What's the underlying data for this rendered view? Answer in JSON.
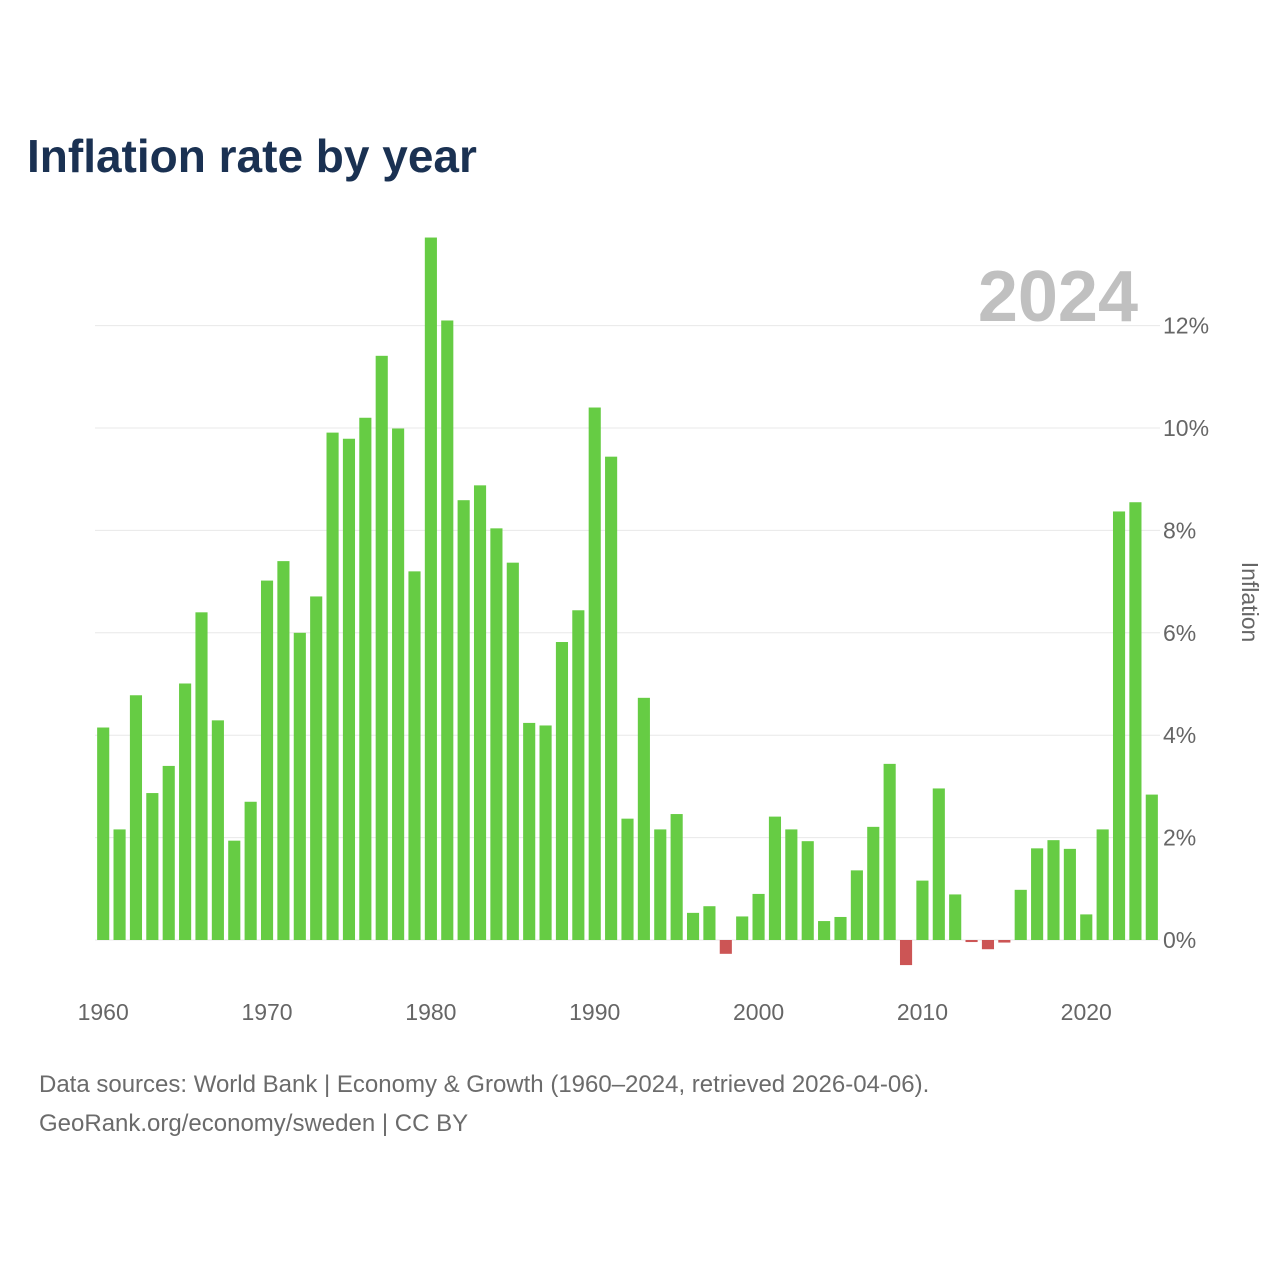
{
  "chart_data": {
    "type": "bar",
    "title": "Inflation rate by year",
    "current_year_label": "2024",
    "ylabel": "Inflation",
    "xlabel": "",
    "ylim": [
      -0.8,
      13.0
    ],
    "y_ticks": [
      {
        "value": 0,
        "label": "0%"
      },
      {
        "value": 2,
        "label": "2%"
      },
      {
        "value": 4,
        "label": "4%"
      },
      {
        "value": 6,
        "label": "6%"
      },
      {
        "value": 8,
        "label": "8%"
      },
      {
        "value": 10,
        "label": "10%"
      },
      {
        "value": 12,
        "label": "12%"
      }
    ],
    "x_ticks": [
      {
        "value": 1960,
        "label": "1960"
      },
      {
        "value": 1970,
        "label": "1970"
      },
      {
        "value": 1980,
        "label": "1980"
      },
      {
        "value": 1990,
        "label": "1990"
      },
      {
        "value": 2000,
        "label": "2000"
      },
      {
        "value": 2010,
        "label": "2010"
      },
      {
        "value": 2020,
        "label": "2020"
      }
    ],
    "years": [
      1960,
      1961,
      1962,
      1963,
      1964,
      1965,
      1966,
      1967,
      1968,
      1969,
      1970,
      1971,
      1972,
      1973,
      1974,
      1975,
      1976,
      1977,
      1978,
      1979,
      1980,
      1981,
      1982,
      1983,
      1984,
      1985,
      1986,
      1987,
      1988,
      1989,
      1990,
      1991,
      1992,
      1993,
      1994,
      1995,
      1996,
      1997,
      1998,
      1999,
      2000,
      2001,
      2002,
      2003,
      2004,
      2005,
      2006,
      2007,
      2008,
      2009,
      2010,
      2011,
      2012,
      2013,
      2014,
      2015,
      2016,
      2017,
      2018,
      2019,
      2020,
      2021,
      2022,
      2023,
      2024
    ],
    "values": [
      4.15,
      2.16,
      4.78,
      2.87,
      3.4,
      5.01,
      6.4,
      4.29,
      1.94,
      2.7,
      7.02,
      7.4,
      6.0,
      6.71,
      9.91,
      9.79,
      10.2,
      11.41,
      9.99,
      7.2,
      13.72,
      12.1,
      8.59,
      8.88,
      8.04,
      7.37,
      4.24,
      4.19,
      5.82,
      6.44,
      10.4,
      9.44,
      2.37,
      4.73,
      2.16,
      2.46,
      0.53,
      0.66,
      -0.27,
      0.46,
      0.9,
      2.41,
      2.16,
      1.93,
      0.37,
      0.45,
      1.36,
      2.21,
      3.44,
      -0.49,
      1.16,
      2.96,
      0.89,
      -0.04,
      -0.18,
      -0.05,
      0.98,
      1.79,
      1.95,
      1.78,
      0.5,
      2.16,
      8.37,
      8.55,
      2.84
    ],
    "positive_color": "#66cc44",
    "negative_color": "#cc5555",
    "grid": true
  },
  "footer": {
    "source_line": "Data sources: World Bank | Economy & Growth (1960–2024, retrieved 2026-04-06).",
    "license_line": "GeoRank.org/economy/sweden | CC BY"
  }
}
